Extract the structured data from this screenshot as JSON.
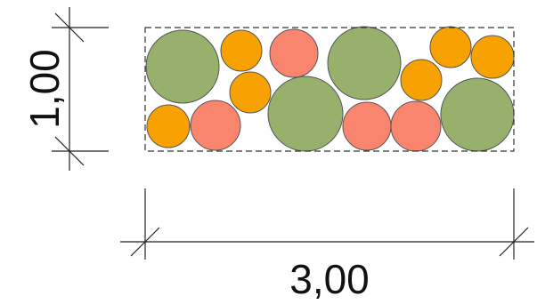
{
  "dimensions": {
    "height_label": "1,00",
    "width_label": "3,00"
  }
}
